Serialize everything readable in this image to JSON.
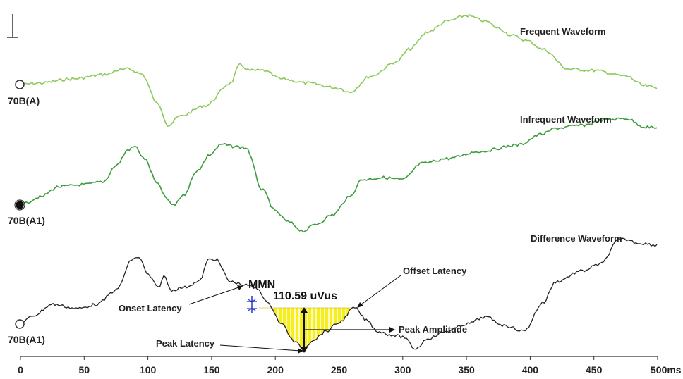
{
  "waveforms": [
    {
      "label": "Frequent Waveform",
      "channel": "70B(A)",
      "color": "#8dc85a"
    },
    {
      "label": "Infrequent Waveform",
      "channel": "70B(A1)",
      "color": "#3e9c3e"
    },
    {
      "label": "Difference Waveform",
      "channel": "70B(A1)",
      "color": "#222222"
    }
  ],
  "annotations": {
    "mmn": "MMN",
    "area": "110.59 uVus",
    "onset": "Onset Latency",
    "offset": "Offset Latency",
    "peak_latency": "Peak Latency",
    "peak_amplitude": "Peak Amplitude"
  },
  "x_axis": {
    "ticks": [
      "0",
      "50",
      "100",
      "150",
      "200",
      "250",
      "300",
      "350",
      "400",
      "450",
      "500ms"
    ]
  },
  "colors": {
    "fill": "#f7ee20",
    "fill_stripe": "#ffffff",
    "marker": "#2233cc"
  }
}
